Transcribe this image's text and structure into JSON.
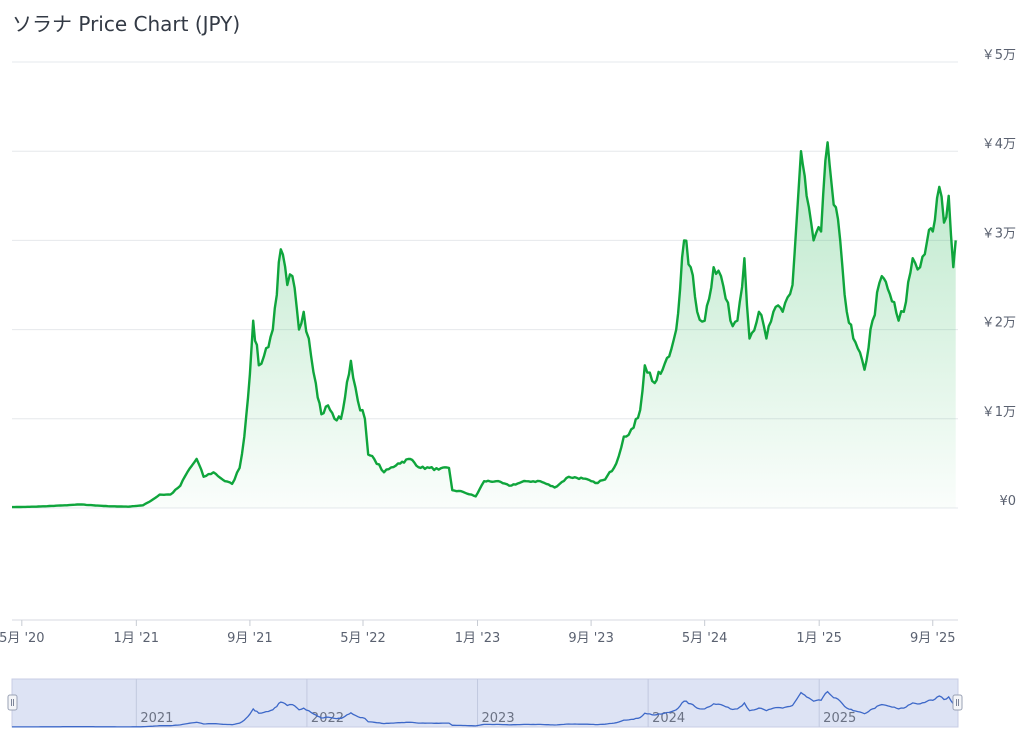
{
  "title": "ソラナ Price Chart (JPY)",
  "chart_data": {
    "type": "area",
    "title": "ソラナ Price Chart (JPY)",
    "currency": "JPY",
    "ylim": [
      0,
      50000
    ],
    "y_ticks": [
      {
        "value": 0,
        "label": "¥0"
      },
      {
        "value": 10000,
        "label": "￥1万"
      },
      {
        "value": 20000,
        "label": "￥2万"
      },
      {
        "value": 30000,
        "label": "￥3万"
      },
      {
        "value": 40000,
        "label": "￥4万"
      },
      {
        "value": 50000,
        "label": "￥5万"
      }
    ],
    "xlim": [
      "2020-04-10",
      "2025-10-25"
    ],
    "x_ticks": [
      {
        "date": "2020-05-01",
        "label": "5月 '20"
      },
      {
        "date": "2021-01-01",
        "label": "1月 '21"
      },
      {
        "date": "2021-09-01",
        "label": "9月 '21"
      },
      {
        "date": "2022-05-01",
        "label": "5月 '22"
      },
      {
        "date": "2023-01-01",
        "label": "1月 '23"
      },
      {
        "date": "2023-09-01",
        "label": "9月 '23"
      },
      {
        "date": "2024-05-01",
        "label": "5月 '24"
      },
      {
        "date": "2025-01-01",
        "label": "1月 '25"
      },
      {
        "date": "2025-09-01",
        "label": "9月 '25"
      }
    ],
    "navigator_labels": [
      {
        "date": "2021-01-01",
        "label": "2021"
      },
      {
        "date": "2022-01-01",
        "label": "2022"
      },
      {
        "date": "2023-01-01",
        "label": "2023"
      },
      {
        "date": "2024-01-01",
        "label": "2024"
      },
      {
        "date": "2025-01-01",
        "label": "2025"
      }
    ],
    "grid": true,
    "colors": {
      "line": "#0fa53c",
      "fill": "#16b14a",
      "navigator_line": "#3d68c8",
      "navigator_bg": "#dde3f4",
      "grid": "#e6e8ec"
    },
    "series": [
      {
        "points": [
          [
            "2020-04-10",
            100
          ],
          [
            "2020-06-01",
            150
          ],
          [
            "2020-08-01",
            300
          ],
          [
            "2020-09-01",
            400
          ],
          [
            "2020-10-01",
            300
          ],
          [
            "2020-11-01",
            200
          ],
          [
            "2020-12-15",
            150
          ],
          [
            "2021-01-15",
            300
          ],
          [
            "2021-02-01",
            800
          ],
          [
            "2021-02-20",
            1500
          ],
          [
            "2021-03-15",
            1500
          ],
          [
            "2021-04-05",
            2500
          ],
          [
            "2021-04-20",
            4000
          ],
          [
            "2021-05-10",
            5500
          ],
          [
            "2021-05-25",
            3500
          ],
          [
            "2021-06-15",
            4000
          ],
          [
            "2021-07-10",
            3000
          ],
          [
            "2021-07-25",
            2700
          ],
          [
            "2021-08-10",
            4500
          ],
          [
            "2021-08-20",
            8000
          ],
          [
            "2021-09-01",
            15000
          ],
          [
            "2021-09-08",
            21000
          ],
          [
            "2021-09-20",
            16000
          ],
          [
            "2021-10-01",
            17000
          ],
          [
            "2021-10-20",
            20000
          ],
          [
            "2021-11-06",
            29000
          ],
          [
            "2021-11-20",
            25000
          ],
          [
            "2021-12-01",
            26000
          ],
          [
            "2021-12-15",
            20000
          ],
          [
            "2021-12-25",
            22000
          ],
          [
            "2022-01-05",
            19000
          ],
          [
            "2022-01-20",
            14000
          ],
          [
            "2022-02-01",
            10500
          ],
          [
            "2022-02-15",
            11500
          ],
          [
            "2022-03-01",
            10000
          ],
          [
            "2022-03-15",
            10000
          ],
          [
            "2022-04-01",
            15000
          ],
          [
            "2022-04-05",
            16500
          ],
          [
            "2022-04-20",
            12000
          ],
          [
            "2022-05-05",
            10000
          ],
          [
            "2022-05-12",
            6000
          ],
          [
            "2022-05-25",
            5500
          ],
          [
            "2022-06-15",
            4000
          ],
          [
            "2022-07-15",
            5000
          ],
          [
            "2022-08-10",
            5500
          ],
          [
            "2022-09-01",
            4500
          ],
          [
            "2022-09-20",
            4500
          ],
          [
            "2022-10-10",
            4300
          ],
          [
            "2022-11-01",
            4500
          ],
          [
            "2022-11-08",
            2000
          ],
          [
            "2022-12-01",
            1800
          ],
          [
            "2022-12-28",
            1300
          ],
          [
            "2023-01-15",
            3000
          ],
          [
            "2023-02-10",
            3000
          ],
          [
            "2023-03-10",
            2500
          ],
          [
            "2023-04-15",
            3000
          ],
          [
            "2023-05-15",
            3000
          ],
          [
            "2023-06-15",
            2300
          ],
          [
            "2023-07-15",
            3500
          ],
          [
            "2023-08-15",
            3300
          ],
          [
            "2023-09-10",
            2800
          ],
          [
            "2023-10-01",
            3200
          ],
          [
            "2023-10-25",
            5000
          ],
          [
            "2023-11-10",
            8000
          ],
          [
            "2023-12-01",
            9000
          ],
          [
            "2023-12-15",
            11000
          ],
          [
            "2023-12-25",
            16000
          ],
          [
            "2024-01-15",
            14000
          ],
          [
            "2024-02-01",
            15500
          ],
          [
            "2024-02-15",
            17000
          ],
          [
            "2024-03-01",
            20000
          ],
          [
            "2024-03-18",
            30000
          ],
          [
            "2024-04-01",
            27000
          ],
          [
            "2024-04-15",
            22000
          ],
          [
            "2024-05-01",
            21000
          ],
          [
            "2024-05-20",
            27000
          ],
          [
            "2024-06-05",
            26000
          ],
          [
            "2024-06-25",
            21000
          ],
          [
            "2024-07-10",
            21000
          ],
          [
            "2024-07-25",
            28000
          ],
          [
            "2024-08-05",
            19000
          ],
          [
            "2024-08-25",
            22000
          ],
          [
            "2024-09-10",
            19000
          ],
          [
            "2024-09-25",
            22000
          ],
          [
            "2024-10-15",
            22000
          ],
          [
            "2024-11-05",
            25000
          ],
          [
            "2024-11-23",
            40000
          ],
          [
            "2024-12-05",
            35000
          ],
          [
            "2024-12-20",
            30000
          ],
          [
            "2025-01-05",
            31000
          ],
          [
            "2025-01-19",
            41000
          ],
          [
            "2025-02-01",
            34000
          ],
          [
            "2025-02-15",
            30000
          ],
          [
            "2025-03-01",
            22000
          ],
          [
            "2025-03-15",
            19000
          ],
          [
            "2025-04-08",
            15500
          ],
          [
            "2025-04-25",
            21000
          ],
          [
            "2025-05-15",
            26000
          ],
          [
            "2025-06-01",
            24000
          ],
          [
            "2025-06-20",
            21000
          ],
          [
            "2025-07-01",
            22000
          ],
          [
            "2025-07-20",
            28000
          ],
          [
            "2025-08-05",
            27000
          ],
          [
            "2025-08-20",
            30000
          ],
          [
            "2025-09-01",
            31000
          ],
          [
            "2025-09-15",
            36000
          ],
          [
            "2025-09-25",
            32000
          ],
          [
            "2025-10-05",
            35000
          ],
          [
            "2025-10-15",
            27000
          ],
          [
            "2025-10-20",
            30000
          ]
        ]
      }
    ]
  }
}
